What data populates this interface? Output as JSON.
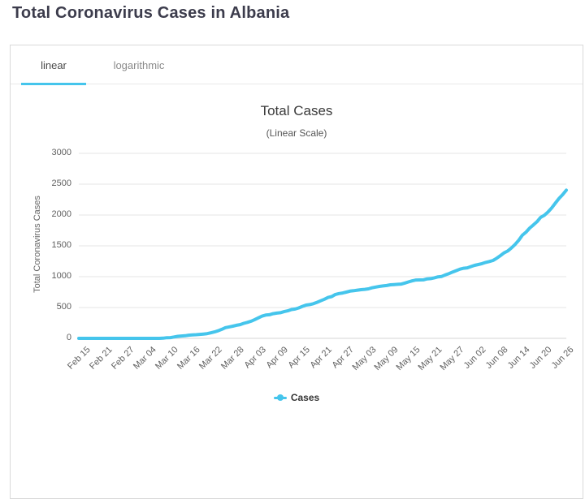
{
  "page": {
    "title": "Total Coronavirus Cases in Albania"
  },
  "colors": {
    "accent": "#45c5ec",
    "gridline": "#e6e6e6",
    "axis_line": "#d4d4d4",
    "axis_text": "#606060"
  },
  "tabs": {
    "linear_label": "linear",
    "logarithmic_label": "logarithmic",
    "active": "linear"
  },
  "legend": {
    "label": "Cases"
  },
  "chart_data": {
    "type": "line",
    "title": "Total Cases",
    "subtitle": "(Linear Scale)",
    "xlabel": "",
    "ylabel": "Total Coronavirus Cases",
    "ylim": [
      0,
      3000
    ],
    "yticks": [
      0,
      500,
      1000,
      1500,
      2000,
      2500,
      3000
    ],
    "grid": true,
    "legend_position": "bottom",
    "x_tick_every": 6,
    "x_tick_labels": [
      "Feb 15",
      "Feb 21",
      "Feb 27",
      "Mar 04",
      "Mar 10",
      "Mar 16",
      "Mar 22",
      "Mar 28",
      "Apr 03",
      "Apr 09",
      "Apr 15",
      "Apr 21",
      "Apr 27",
      "May 03",
      "May 09",
      "May 15",
      "May 21",
      "May 27",
      "Jun 02",
      "Jun 08",
      "Jun 14",
      "Jun 20",
      "Jun 26"
    ],
    "tick_values": [
      0,
      0,
      0,
      0,
      10,
      51,
      89,
      197,
      304,
      409,
      494,
      609,
      736,
      795,
      856,
      916,
      969,
      1076,
      1184,
      1299,
      1590,
      1962,
      2330
    ],
    "series": [
      {
        "name": "Cases",
        "color": "#45c5ec",
        "start": "Feb 15",
        "interval_days": 1,
        "values": [
          0,
          0,
          0,
          0,
          0,
          0,
          0,
          0,
          0,
          0,
          0,
          0,
          0,
          0,
          0,
          0,
          0,
          0,
          0,
          0,
          0,
          0,
          0,
          2,
          10,
          12,
          23,
          33,
          38,
          42,
          51,
          55,
          59,
          64,
          70,
          76,
          89,
          104,
          123,
          146,
          174,
          186,
          197,
          212,
          223,
          243,
          259,
          277,
          304,
          333,
          361,
          377,
          383,
          400,
          409,
          416,
          433,
          446,
          467,
          475,
          494,
          518,
          539,
          548,
          562,
          584,
          609,
          634,
          663,
          678,
          712,
          726,
          736,
          750,
          766,
          773,
          782,
          789,
          795,
          803,
          820,
          832,
          842,
          850,
          856,
          868,
          872,
          876,
          880,
          898,
          916,
          933,
          946,
          948,
          949,
          964,
          969,
          981,
          998,
          1004,
          1029,
          1050,
          1076,
          1099,
          1122,
          1137,
          1143,
          1164,
          1184,
          1197,
          1212,
          1232,
          1246,
          1263,
          1299,
          1341,
          1385,
          1416,
          1464,
          1521,
          1590,
          1672,
          1722,
          1788,
          1838,
          1891,
          1962,
          1995,
          2047,
          2114,
          2192,
          2269,
          2330,
          2402
        ]
      }
    ]
  }
}
